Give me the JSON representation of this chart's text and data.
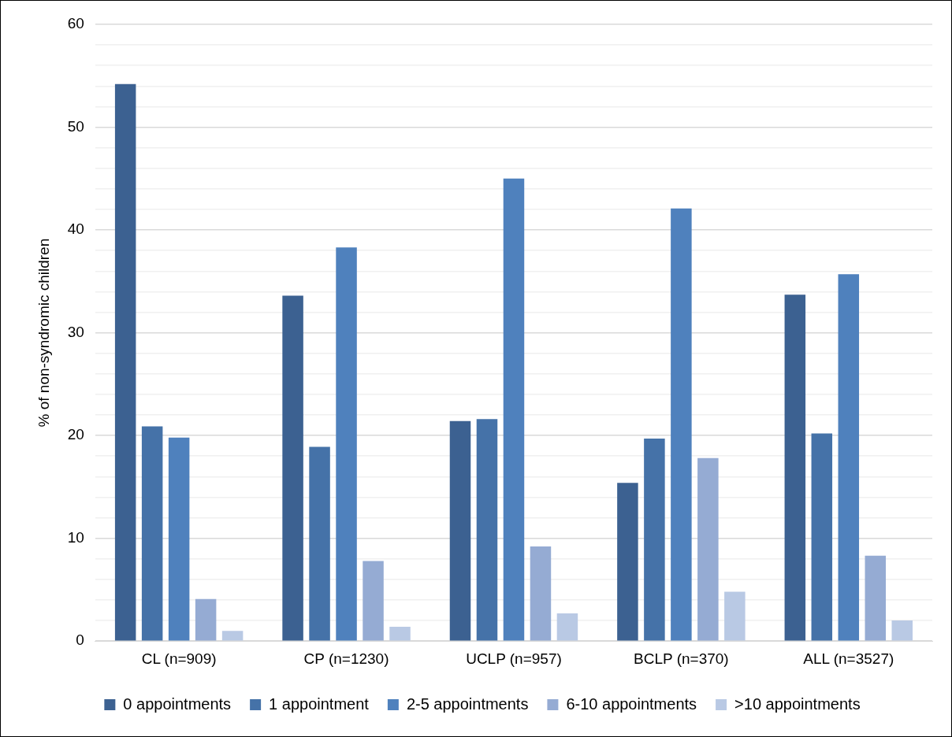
{
  "chart_data": {
    "type": "bar",
    "ylabel": "% of non-syndromic children",
    "categories": [
      "CL (n=909)",
      "CP (n=1230)",
      "UCLP (n=957)",
      "BCLP (n=370)",
      "ALL (n=3527)"
    ],
    "series": [
      {
        "name": "0 appointments",
        "color": "#3c6191",
        "values": [
          54.2,
          33.6,
          21.4,
          15.4,
          33.7
        ]
      },
      {
        "name": "1 appointment",
        "color": "#4572a8",
        "values": [
          20.9,
          18.9,
          21.6,
          19.7,
          20.2
        ]
      },
      {
        "name": "2-5 appointments",
        "color": "#4f81bd",
        "values": [
          19.8,
          38.3,
          45.0,
          42.1,
          35.7
        ]
      },
      {
        "name": "6-10 appointments",
        "color": "#95abd3",
        "values": [
          4.1,
          7.8,
          9.2,
          17.8,
          8.3
        ]
      },
      {
        "name": ">10 appointments",
        "color": "#b9c9e4",
        "values": [
          1.0,
          1.4,
          2.7,
          4.8,
          2.0
        ]
      }
    ],
    "ylim": [
      0,
      60
    ],
    "yticks": [
      0,
      {
        "value": 2,
        "label": null
      },
      {
        "value": 4,
        "label": null
      },
      {
        "value": 6,
        "label": null
      },
      {
        "value": 8,
        "label": null
      },
      10,
      {
        "value": 12,
        "label": null
      },
      {
        "value": 14,
        "label": null
      },
      {
        "value": 16,
        "label": null
      },
      {
        "value": 18,
        "label": null
      },
      20,
      {
        "value": 22,
        "label": null
      },
      {
        "value": 24,
        "label": null
      },
      {
        "value": 26,
        "label": null
      },
      {
        "value": 28,
        "label": null
      },
      30,
      {
        "value": 32,
        "label": null
      },
      {
        "value": 34,
        "label": null
      },
      {
        "value": 36,
        "label": null
      },
      {
        "value": 38,
        "label": null
      },
      40,
      {
        "value": 42,
        "label": null
      },
      {
        "value": 44,
        "label": null
      },
      {
        "value": 46,
        "label": null
      },
      {
        "value": 48,
        "label": null
      },
      50,
      {
        "value": 52,
        "label": null
      },
      {
        "value": 54,
        "label": null
      },
      {
        "value": 56,
        "label": null
      },
      {
        "value": 58,
        "label": null
      },
      60
    ],
    "grid": "y",
    "legend": "bottom"
  }
}
